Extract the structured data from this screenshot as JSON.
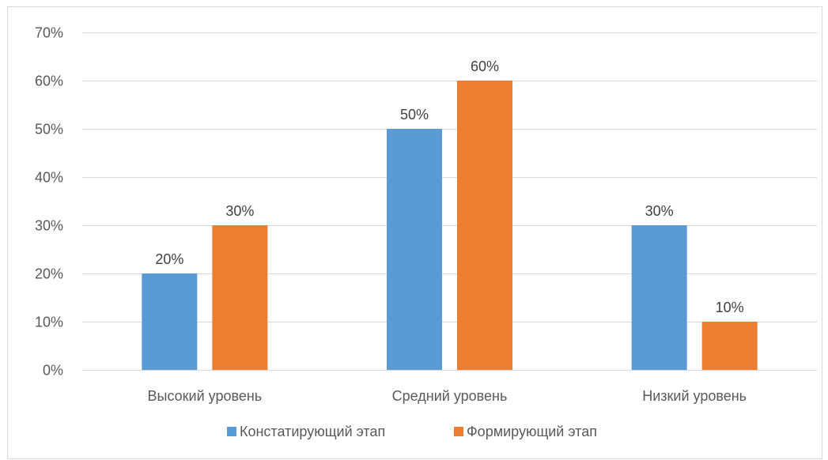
{
  "chart_data": {
    "type": "bar",
    "title": "",
    "xlabel": "",
    "ylabel": "",
    "categories": [
      "Высокий уровень",
      "Средний уровень",
      "Низкий уровень"
    ],
    "series": [
      {
        "name": "Констатирующий этап",
        "values": [
          20,
          50,
          30
        ],
        "color": "#5b9bd5"
      },
      {
        "name": "Формирующий этап",
        "values": [
          30,
          60,
          10
        ],
        "color": "#ed7d31"
      }
    ],
    "value_suffix": "%",
    "ylim": [
      0,
      70
    ],
    "yticks": [
      0,
      10,
      20,
      30,
      40,
      50,
      60,
      70
    ],
    "grid": true,
    "legend_position": "bottom"
  },
  "colors": {
    "gridline": "#d9d9d9",
    "frame": "#d9d9d9"
  }
}
